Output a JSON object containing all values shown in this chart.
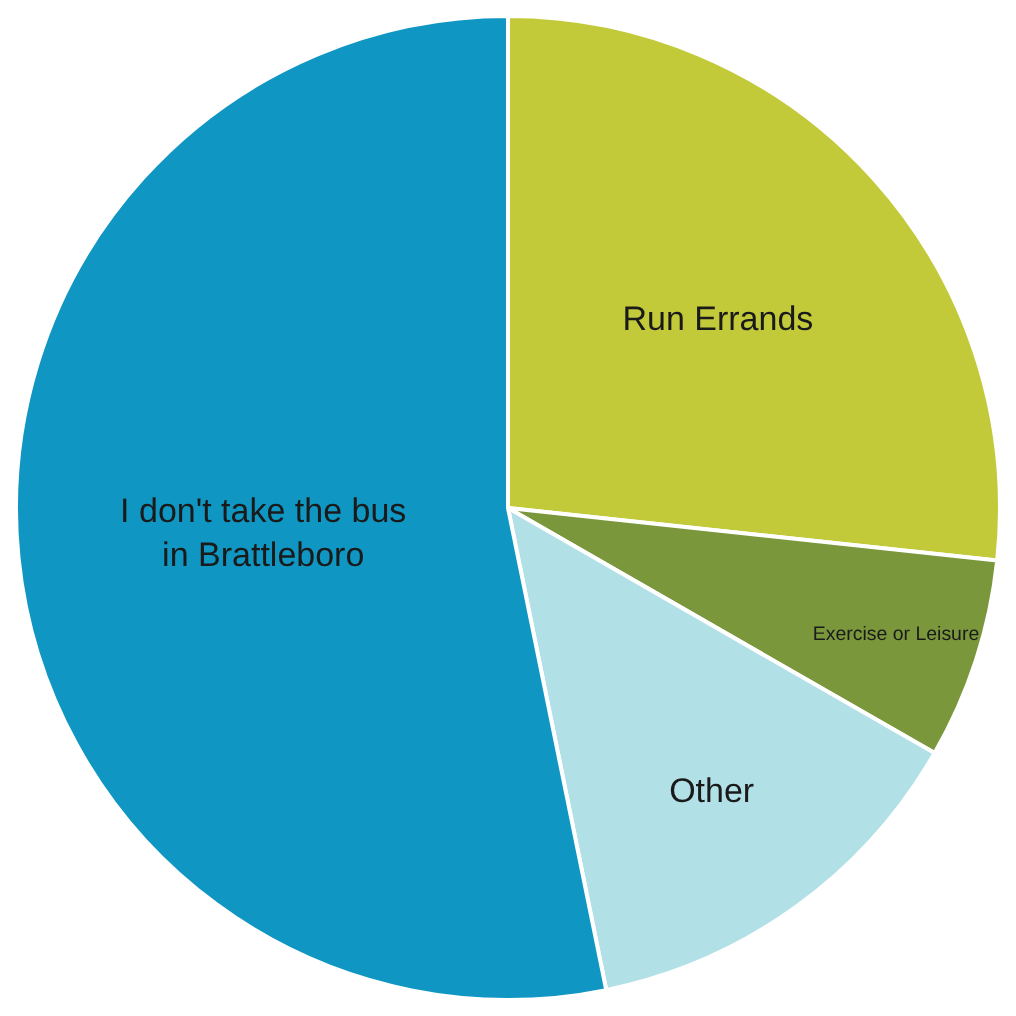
{
  "chart_data": {
    "type": "pie",
    "categories": [
      "Run Errands",
      "Exercise or Leisure",
      "Other",
      "I don't take the bus in Brattleboro"
    ],
    "values": [
      26.7,
      6.6,
      13.5,
      53.2
    ],
    "colors": [
      "#c2ca3a",
      "#7a973c",
      "#b2e0e7",
      "#0f96c2"
    ],
    "legend": false
  }
}
